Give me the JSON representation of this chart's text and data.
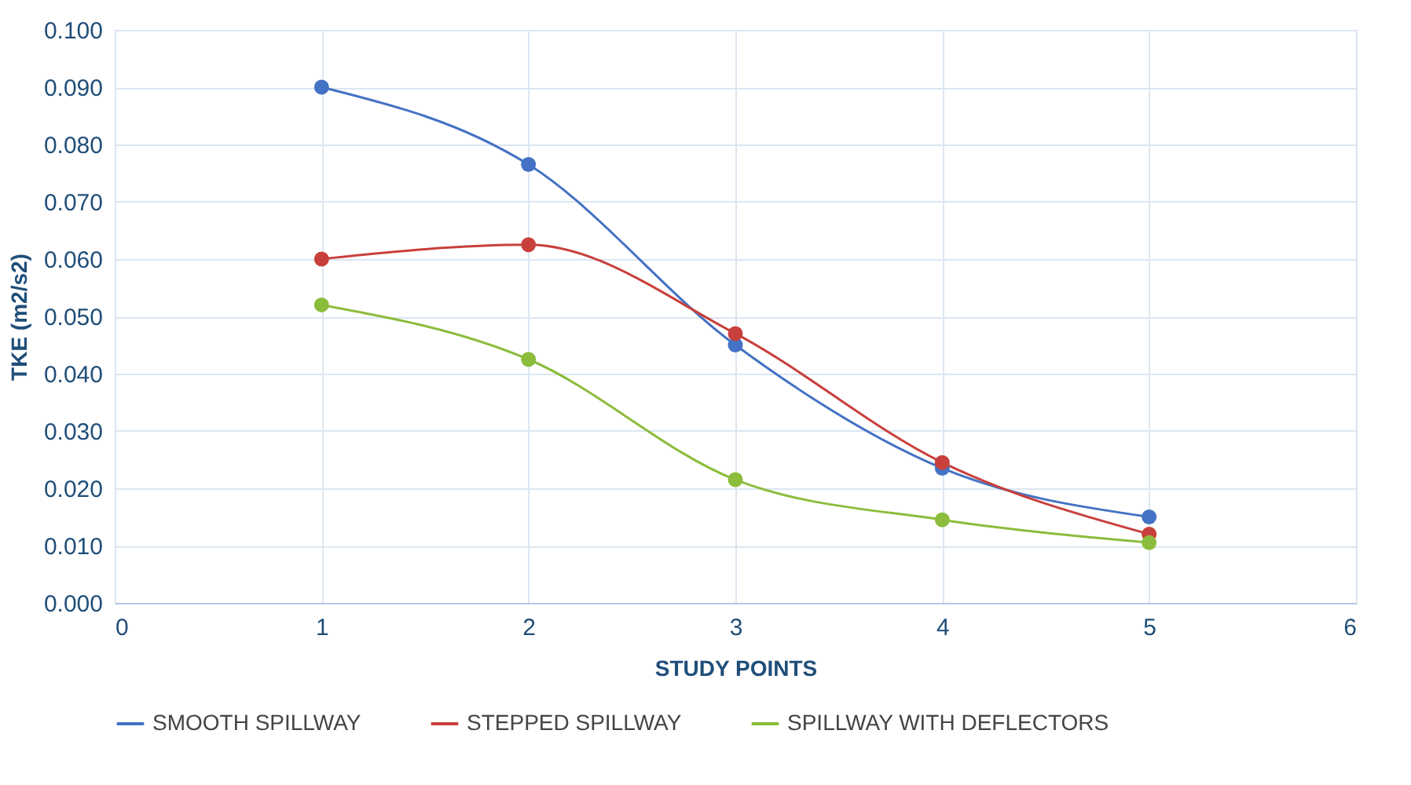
{
  "chart_data": {
    "type": "line",
    "xlabel": "STUDY POINTS",
    "ylabel": "TKE (m2/s2)",
    "x": [
      1,
      2,
      3,
      4,
      5
    ],
    "series": [
      {
        "name": "SMOOTH SPILLWAY",
        "color": "#4472c4",
        "values": [
          0.09,
          0.0765,
          0.045,
          0.0235,
          0.015
        ]
      },
      {
        "name": "STEPPED SPILLWAY",
        "color": "#c8403c",
        "values": [
          0.06,
          0.0625,
          0.047,
          0.0245,
          0.012
        ]
      },
      {
        "name": "SPILLWAY WITH DEFLECTORS",
        "color": "#8cbc3c",
        "values": [
          0.052,
          0.0425,
          0.0215,
          0.0145,
          0.0105
        ]
      }
    ],
    "xlim": [
      0,
      6
    ],
    "xticks": [
      0,
      1,
      2,
      3,
      4,
      5,
      6
    ],
    "ylim": [
      0,
      0.1
    ],
    "yticks": [
      {
        "value": 0,
        "label": "0.000"
      },
      {
        "value": 0.01,
        "label": "0.010"
      },
      {
        "value": 0.02,
        "label": "0.020"
      },
      {
        "value": 0.03,
        "label": "0.030"
      },
      {
        "value": 0.04,
        "label": "0.040"
      },
      {
        "value": 0.05,
        "label": "0.050"
      },
      {
        "value": 0.06,
        "label": "0.060"
      },
      {
        "value": 0.07,
        "label": "0.070"
      },
      {
        "value": 0.08,
        "label": "0.080"
      },
      {
        "value": 0.09,
        "label": "0.090"
      },
      {
        "value": 0.1,
        "label": "0.100"
      }
    ],
    "grid": true,
    "legend": "bottom",
    "marker": "circle",
    "line_style": "solid"
  }
}
